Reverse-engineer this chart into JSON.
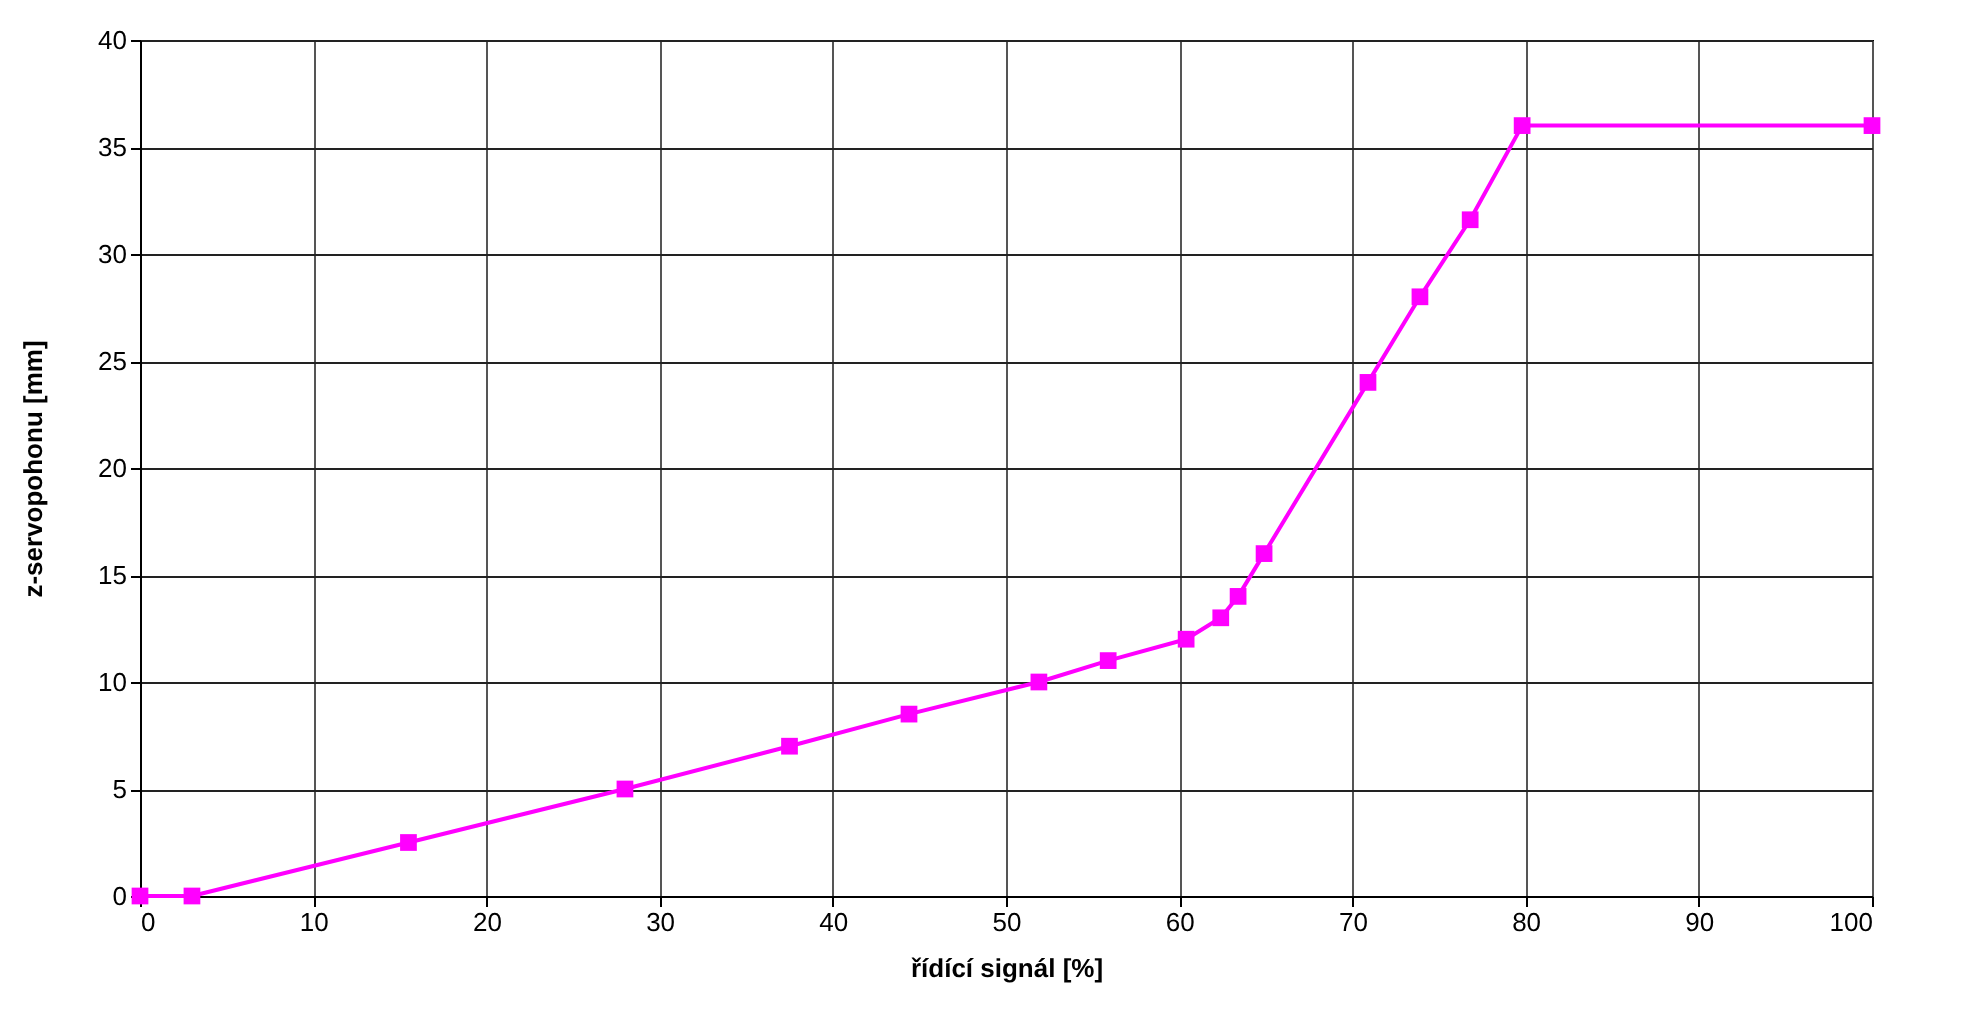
{
  "chart_data": {
    "type": "line",
    "xlabel": "řídící signál [%]",
    "ylabel": "z-servopohonu [mm]",
    "x": [
      0,
      3,
      15.5,
      28,
      37.5,
      44.4,
      51.9,
      55.9,
      60.4,
      62.4,
      63.4,
      64.9,
      70.9,
      73.9,
      76.8,
      79.8,
      100
    ],
    "series": [
      {
        "color": "#ff00ff",
        "values": [
          0,
          0,
          2.5,
          5,
          7,
          8.5,
          10,
          11,
          12,
          13,
          14,
          16,
          24,
          28,
          31.6,
          36,
          36
        ]
      }
    ],
    "xlim": [
      0,
      100
    ],
    "xticks": [
      0,
      10,
      20,
      30,
      40,
      50,
      60,
      70,
      80,
      90,
      100
    ],
    "ylim": [
      0,
      40
    ],
    "yticks": [
      0,
      5,
      10,
      15,
      20,
      25,
      30,
      35,
      40
    ],
    "grid": true,
    "marker": "square",
    "line_style": "solid"
  }
}
